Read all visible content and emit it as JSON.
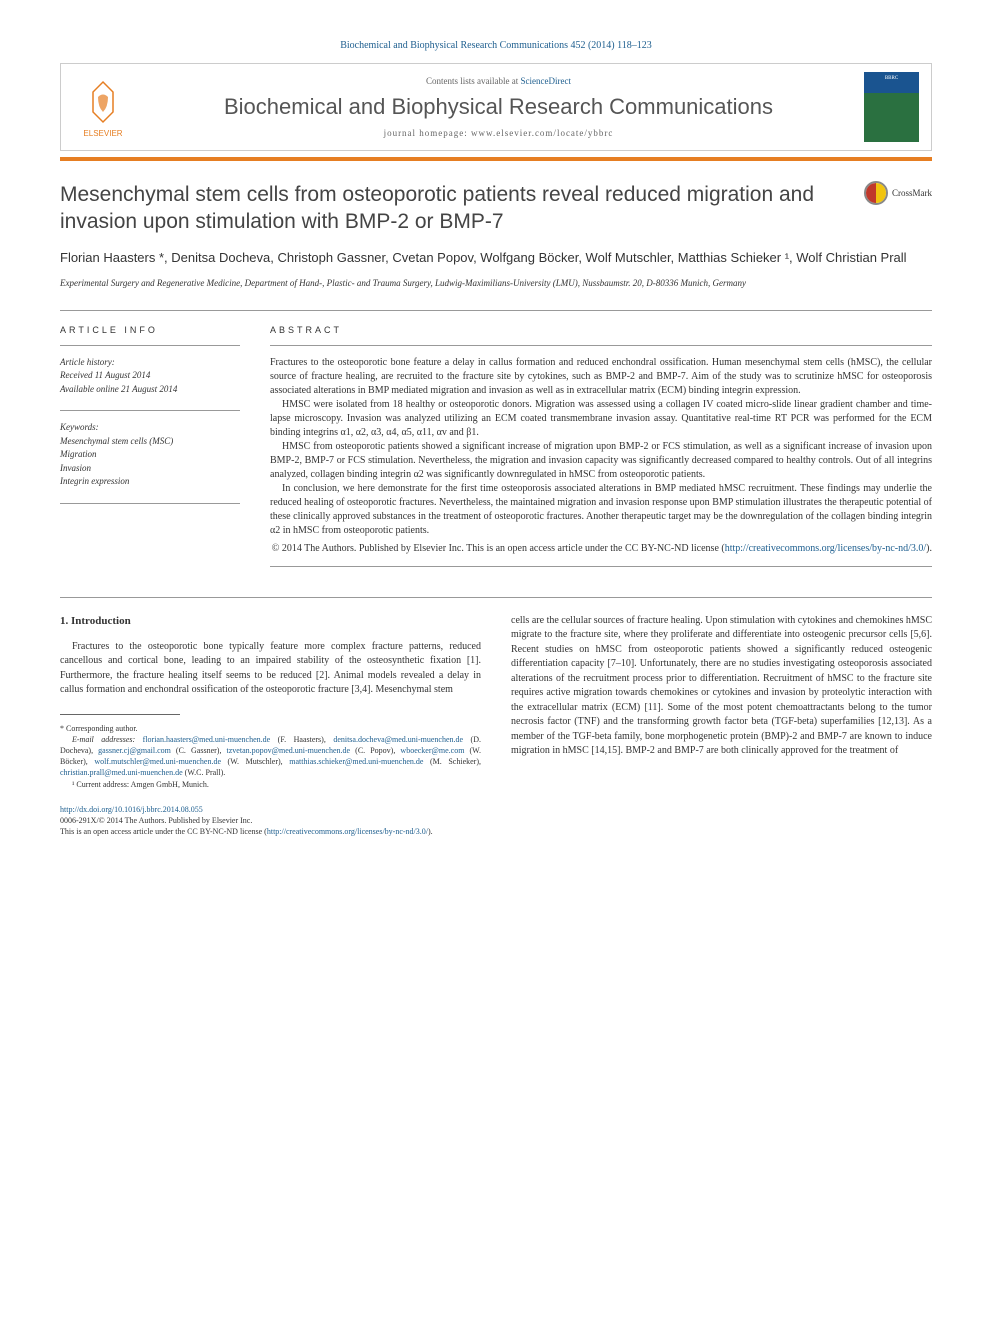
{
  "journal_ref": "Biochemical and Biophysical Research Communications 452 (2014) 118–123",
  "header": {
    "contents_text": "Contents lists available at ",
    "contents_link": "ScienceDirect",
    "journal_name": "Biochemical and Biophysical Research Communications",
    "homepage_text": "journal homepage: www.elsevier.com/locate/ybbrc",
    "publisher": "ELSEVIER",
    "cover_abbrev": "BBRC",
    "cover_title": "Biochemical and Biophysical Research Communications"
  },
  "crossmark_label": "CrossMark",
  "title": "Mesenchymal stem cells from osteoporotic patients reveal reduced migration and invasion upon stimulation with BMP-2 or BMP-7",
  "authors": "Florian Haasters *, Denitsa Docheva, Christoph Gassner, Cvetan Popov, Wolfgang Böcker, Wolf Mutschler, Matthias Schieker ¹, Wolf Christian Prall",
  "affiliation": "Experimental Surgery and Regenerative Medicine, Department of Hand-, Plastic- and Trauma Surgery, Ludwig-Maximilians-University (LMU), Nussbaumstr. 20, D-80336 Munich, Germany",
  "article_info": {
    "header": "ARTICLE INFO",
    "history_label": "Article history:",
    "received": "Received 11 August 2014",
    "available": "Available online 21 August 2014",
    "keywords_label": "Keywords:",
    "keywords": [
      "Mesenchymal stem cells (MSC)",
      "Migration",
      "Invasion",
      "Integrin expression"
    ]
  },
  "abstract": {
    "header": "ABSTRACT",
    "paragraphs": [
      "Fractures to the osteoporotic bone feature a delay in callus formation and reduced enchondral ossification. Human mesenchymal stem cells (hMSC), the cellular source of fracture healing, are recruited to the fracture site by cytokines, such as BMP-2 and BMP-7. Aim of the study was to scrutinize hMSC for osteoporosis associated alterations in BMP mediated migration and invasion as well as in extracellular matrix (ECM) binding integrin expression.",
      "HMSC were isolated from 18 healthy or osteoporotic donors. Migration was assessed using a collagen IV coated micro-slide linear gradient chamber and time-lapse microscopy. Invasion was analyzed utilizing an ECM coated transmembrane invasion assay. Quantitative real-time RT PCR was performed for the ECM binding integrins α1, α2, α3, α4, α5, α11, αv and β1.",
      "HMSC from osteoporotic patients showed a significant increase of migration upon BMP-2 or FCS stimulation, as well as a significant increase of invasion upon BMP-2, BMP-7 or FCS stimulation. Nevertheless, the migration and invasion capacity was significantly decreased compared to healthy controls. Out of all integrins analyzed, collagen binding integrin α2 was significantly downregulated in hMSC from osteoporotic patients.",
      "In conclusion, we here demonstrate for the first time osteoporosis associated alterations in BMP mediated hMSC recruitment. These findings may underlie the reduced healing of osteoporotic fractures. Nevertheless, the maintained migration and invasion response upon BMP stimulation illustrates the therapeutic potential of these clinically approved substances in the treatment of osteoporotic fractures. Another therapeutic target may be the downregulation of the collagen binding integrin α2 in hMSC from osteoporotic patients."
    ],
    "copyright": "© 2014 The Authors. Published by Elsevier Inc. This is an open access article under the CC BY-NC-ND license (",
    "license_url": "http://creativecommons.org/licenses/by-nc-nd/3.0/",
    "copyright_close": ")."
  },
  "body": {
    "section_heading": "1. Introduction",
    "left_paragraph": "Fractures to the osteoporotic bone typically feature more complex fracture patterns, reduced cancellous and cortical bone, leading to an impaired stability of the osteosynthetic fixation [1]. Furthermore, the fracture healing itself seems to be reduced [2]. Animal models revealed a delay in callus formation and enchondral ossification of the osteoporotic fracture [3,4]. Mesenchymal stem",
    "right_paragraph": "cells are the cellular sources of fracture healing. Upon stimulation with cytokines and chemokines hMSC migrate to the fracture site, where they proliferate and differentiate into osteogenic precursor cells [5,6]. Recent studies on hMSC from osteoporotic patients showed a significantly reduced osteogenic differentiation capacity [7–10]. Unfortunately, there are no studies investigating osteoporosis associated alterations of the recruitment process prior to differentiation. Recruitment of hMSC to the fracture site requires active migration towards chemokines or cytokines and invasion by proteolytic interaction with the extracellular matrix (ECM) [11]. Some of the most potent chemoattractants belong to the tumor necrosis factor (TNF) and the transforming growth factor beta (TGF-beta) superfamilies [12,13]. As a member of the TGF-beta family, bone morphogenetic protein (BMP)-2 and BMP-7 are known to induce migration in hMSC [14,15]. BMP-2 and BMP-7 are both clinically approved for the treatment of"
  },
  "footnotes": {
    "corresponding": "* Corresponding author.",
    "email_label": "E-mail addresses:",
    "emails": [
      {
        "addr": "florian.haasters@med.uni-muenchen.de",
        "name": "(F. Haasters)"
      },
      {
        "addr": "denitsa.docheva@med.uni-muenchen.de",
        "name": "(D. Docheva)"
      },
      {
        "addr": "gassner.cj@gmail.com",
        "name": "(C. Gassner)"
      },
      {
        "addr": "tzvetan.popov@med.uni-muenchen.de",
        "name": "(C. Popov)"
      },
      {
        "addr": "wboecker@me.com",
        "name": "(W. Böcker)"
      },
      {
        "addr": "wolf.mutschler@med.uni-muenchen.de",
        "name": "(W. Mutschler)"
      },
      {
        "addr": "matthias.schieker@med.uni-muenchen.de",
        "name": "(M. Schieker)"
      },
      {
        "addr": "christian.prall@med.uni-muenchen.de",
        "name": "(W.C. Prall)"
      }
    ],
    "current_address": "¹ Current address: Amgen GmbH, Munich."
  },
  "doi": {
    "url": "http://dx.doi.org/10.1016/j.bbrc.2014.08.055",
    "issn_line": "0006-291X/© 2014 The Authors. Published by Elsevier Inc.",
    "license_line": "This is an open access article under the CC BY-NC-ND license (",
    "license_url": "http://creativecommons.org/licenses/by-nc-nd/3.0/",
    "license_close": ")."
  },
  "colors": {
    "link": "#206090",
    "accent": "#e67e22",
    "text": "#333333",
    "divider": "#999999"
  }
}
